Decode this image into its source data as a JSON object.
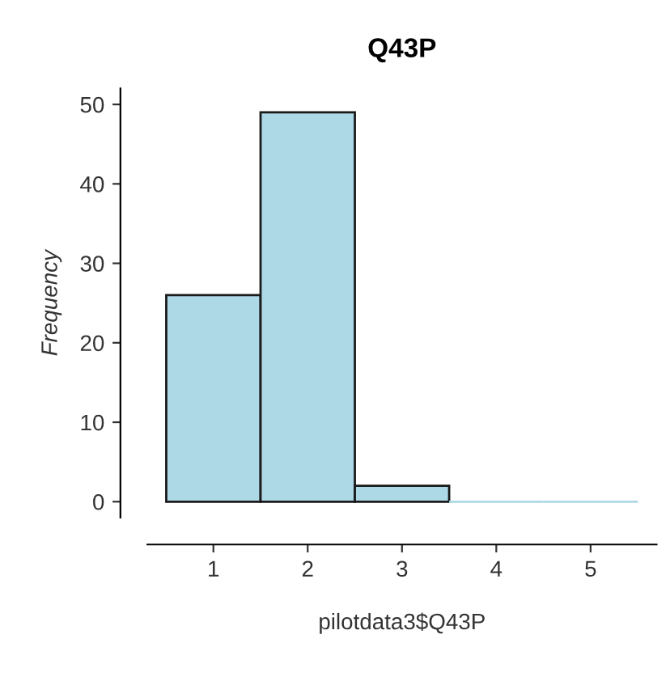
{
  "chart_data": {
    "type": "histogram",
    "title": "Q43P",
    "xlabel": "pilotdata3$Q43P",
    "ylabel": "Frequency",
    "bins": [
      0.5,
      1.5,
      2.5,
      3.5,
      4.5,
      5.5
    ],
    "values": [
      26,
      49,
      2,
      0,
      0
    ],
    "color": "#add8e6",
    "xlim": [
      0.3,
      5.7
    ],
    "xticks": [
      1,
      2,
      3,
      4,
      5
    ],
    "ylim": [
      -2,
      52
    ],
    "yticks": [
      0,
      10,
      20,
      30,
      40,
      50
    ],
    "grid": false,
    "legend": false
  }
}
